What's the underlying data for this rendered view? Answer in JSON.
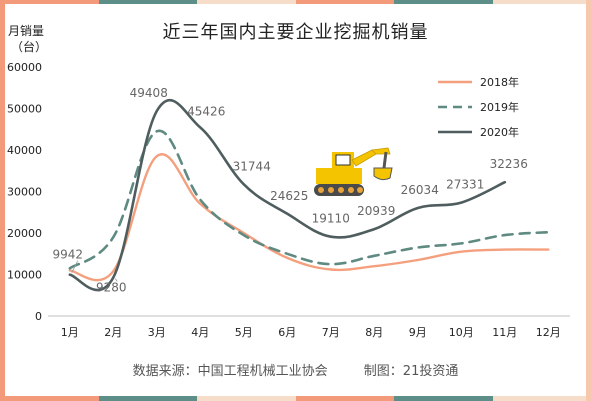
{
  "colors": {
    "series_2018": "#F4A07E",
    "series_2019": "#5E8A82",
    "series_2020": "#4F5D5E",
    "top_bar": [
      "#F29A7A",
      "#5E8E88",
      "#F6DDC9",
      "#F29A7A",
      "#5E8E88",
      "#F6DDC9"
    ],
    "side_left": "#F29A7A",
    "side_right": "#F6C9AE"
  },
  "icon": "excavator-icon",
  "source_text": "数据来源：中国工程机械工业协会",
  "credit_text": "制图：21投资通",
  "chart_data": {
    "type": "line",
    "title": "近三年国内主要企业挖掘机销量",
    "ylabel_line1": "月销量",
    "ylabel_line2": "（台）",
    "xlabel": "",
    "categories": [
      "1月",
      "2月",
      "3月",
      "4月",
      "5月",
      "6月",
      "7月",
      "8月",
      "9月",
      "10月",
      "11月",
      "12月"
    ],
    "ylim": [
      0,
      60000
    ],
    "yticks": [
      0,
      10000,
      20000,
      30000,
      40000,
      50000,
      60000
    ],
    "ytick_labels": [
      "0",
      "10000",
      "20000",
      "30000",
      "40000",
      "50000",
      "60000"
    ],
    "grid": false,
    "legend_position": "top-right",
    "series": [
      {
        "name": "2018年",
        "style": "solid",
        "values": [
          11000,
          10800,
          38500,
          27000,
          20000,
          14000,
          11200,
          12000,
          13500,
          15500,
          16000,
          16000
        ]
      },
      {
        "name": "2019年",
        "style": "dashed",
        "values": [
          11500,
          19000,
          44500,
          28000,
          19500,
          15000,
          12500,
          14500,
          16500,
          17500,
          19500,
          20200
        ]
      },
      {
        "name": "2020年",
        "style": "solid",
        "values": [
          9942,
          9280,
          49408,
          45426,
          31744,
          24625,
          19110,
          20939,
          26034,
          27331,
          32236,
          null
        ]
      }
    ],
    "data_labels": [
      "9942",
      "9280",
      "49408",
      "45426",
      "31744",
      "24625",
      "19110",
      "20939",
      "26034",
      "27331",
      "32236"
    ]
  }
}
